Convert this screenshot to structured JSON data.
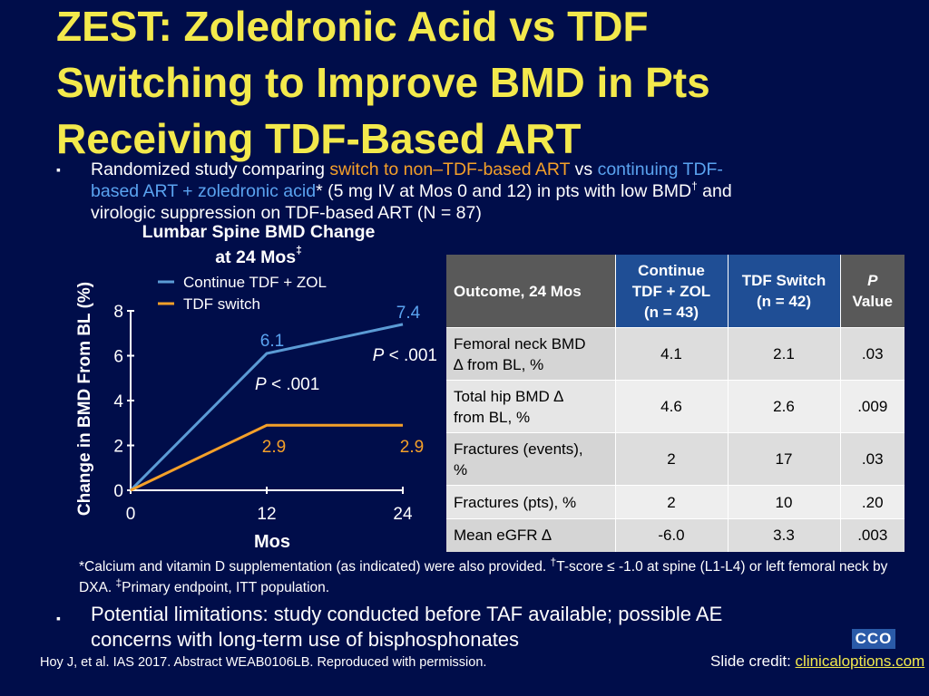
{
  "title_lines": [
    "ZEST: Zoledronic Acid vs TDF",
    "Switching to Improve BMD in Pts",
    "Receiving TDF-Based ART"
  ],
  "bullets": [
    {
      "mark": "▪",
      "line1_a": "Randomized study comparing ",
      "line1_orange": "switch to non–TDF-based ART",
      "line1_b": " vs ",
      "line1_blue": "continuing TDF-",
      "line2_blue": "based ART + zoledronic acid",
      "line2_rest_a": "* (5 mg IV at Mos 0 and 12) in pts with low BMD",
      "line2_sup": "†",
      "line2_rest_b": " and",
      "line3": "virologic suppression on TDF-based ART (N = 87)"
    },
    {
      "mark": "▪",
      "line1": "Potential limitations: study conducted before TAF available; possible AE",
      "line2": "concerns with long-term use of bisphosphonates"
    }
  ],
  "chart_title_line1": "Lumbar Spine BMD Change",
  "chart_title_line2": "at 24 Mos",
  "chart_title_sup": "‡",
  "chart_data": {
    "type": "line",
    "x": [
      0,
      12,
      24
    ],
    "xlabel": "Mos",
    "ylabel": "Change in BMD From BL (%)",
    "xticks": [
      "0",
      "12",
      "24"
    ],
    "yticks": [
      "0",
      "2",
      "4",
      "6",
      "8"
    ],
    "ylim": [
      0,
      8
    ],
    "xlim": [
      0,
      24
    ],
    "series": [
      {
        "name": "Continue TDF + ZOL",
        "color": "#5b9bd5",
        "values": [
          0,
          6.1,
          7.4
        ],
        "labels": [
          "",
          "6.1",
          "7.4"
        ]
      },
      {
        "name": "TDF switch",
        "color": "#f4a029",
        "values": [
          0,
          2.9,
          2.9
        ],
        "labels": [
          "",
          "2.9",
          "2.9"
        ]
      }
    ],
    "annotations": [
      {
        "text_p": "P",
        "text_rest": " < .001",
        "x": 12,
        "y": 4.6
      },
      {
        "text_p": "P",
        "text_rest": " < .001",
        "x": 24,
        "y": 6.0
      }
    ],
    "legend_placement": "top-left"
  },
  "table": {
    "headers": [
      "Outcome, 24 Mos",
      "Continue TDF + ZOL (n = 43)",
      "TDF Switch (n = 42)",
      "P Value"
    ],
    "header_lines": [
      [
        "Outcome, 24 Mos"
      ],
      [
        "Continue",
        "TDF + ZOL",
        "(n = 43)"
      ],
      [
        "TDF Switch",
        "(n = 42)"
      ],
      [
        "P",
        "Value"
      ]
    ],
    "rows": [
      {
        "outcome_lines": [
          "Femoral neck BMD",
          "∆ from BL, %"
        ],
        "zol": "4.1",
        "switch": "2.1",
        "p": ".03"
      },
      {
        "outcome_lines": [
          "Total hip BMD ∆",
          "from BL, %"
        ],
        "zol": "4.6",
        "switch": "2.6",
        "p": ".009"
      },
      {
        "outcome_lines": [
          "Fractures (events),",
          "%"
        ],
        "zol": "2",
        "switch": "17",
        "p": ".03"
      },
      {
        "outcome_lines": [
          "Fractures (pts), %"
        ],
        "zol": "2",
        "switch": "10",
        "p": ".20"
      },
      {
        "outcome_lines": [
          "Mean eGFR ∆"
        ],
        "zol": "-6.0",
        "switch": "3.3",
        "p": ".003"
      }
    ]
  },
  "footnote": {
    "part1": "*Calcium and vitamin D supplementation (as indicated) were also provided. ",
    "sup1": "†",
    "part2": "T-score ≤ -1.0 at spine (L1-L4) or left femoral neck by DXA. ",
    "sup2": "‡",
    "part3": "Primary endpoint, ITT population."
  },
  "citation": "Hoy J, et al. IAS 2017. Abstract WEAB0106LB. Reproduced with permission.",
  "credit_label": "Slide credit: ",
  "credit_link": "clinicaloptions.com",
  "logo_text": "CCO",
  "colors": {
    "background": "#000d4a",
    "title": "#f3e94c",
    "orange": "#f4a029",
    "blue": "#5aa3f0"
  }
}
